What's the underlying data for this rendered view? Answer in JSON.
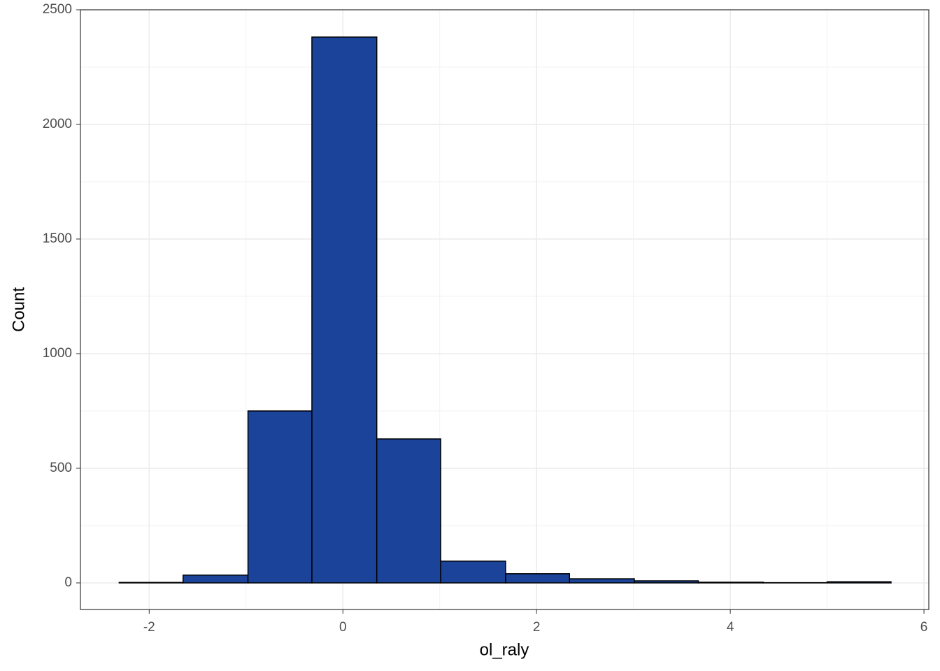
{
  "chart_data": {
    "type": "histogram",
    "x_label": "ol_raly",
    "y_label": "Count",
    "bins": [
      -2.31,
      -1.65,
      -0.98,
      -0.32,
      0.35,
      1.01,
      1.68,
      2.34,
      3.01,
      3.67,
      4.34,
      5.0,
      5.66
    ],
    "counts": [
      2,
      34,
      750,
      2381,
      628,
      95,
      40,
      18,
      9,
      3,
      1,
      5
    ],
    "color": "#1a4399",
    "edge_color": "#000000",
    "xlim": [
      -2.71,
      6.05
    ],
    "xticks": [
      -2,
      0,
      2,
      4,
      6
    ],
    "ylim": [
      -116,
      2500
    ],
    "yticks": [
      0,
      500,
      1000,
      1500,
      2000,
      2500
    ],
    "grid": true
  }
}
